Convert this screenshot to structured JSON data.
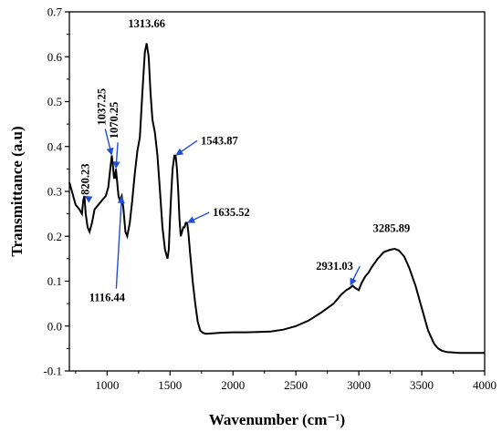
{
  "chart_data": {
    "type": "line",
    "title": "",
    "xlabel": "Wavenumber (cm⁻¹)",
    "ylabel": "Transmittance (a.u)",
    "xlim": [
      700,
      4000
    ],
    "ylim": [
      -0.1,
      0.7
    ],
    "grid": false,
    "x_ticks": [
      "1000",
      "1500",
      "2000",
      "2500",
      "3000",
      "3500",
      "4000"
    ],
    "y_ticks": [
      "-0.1",
      "0.0",
      "0.1",
      "0.2",
      "0.3",
      "0.4",
      "0.5",
      "0.6",
      "0.7"
    ],
    "series": [
      {
        "color": "#000000",
        "x": [
          700,
          720,
          750,
          780,
          800,
          810,
          820,
          830,
          845,
          860,
          880,
          900,
          930,
          960,
          990,
          1010,
          1025,
          1037,
          1045,
          1055,
          1062,
          1070,
          1080,
          1090,
          1100,
          1116,
          1130,
          1145,
          1160,
          1180,
          1200,
          1220,
          1240,
          1260,
          1280,
          1300,
          1314,
          1330,
          1345,
          1360,
          1380,
          1400,
          1420,
          1440,
          1460,
          1480,
          1490,
          1500,
          1510,
          1520,
          1535,
          1544,
          1555,
          1565,
          1575,
          1585,
          1595,
          1605,
          1615,
          1625,
          1636,
          1645,
          1660,
          1680,
          1700,
          1720,
          1740,
          1760,
          1780,
          1800,
          1850,
          1900,
          2000,
          2100,
          2200,
          2300,
          2400,
          2500,
          2600,
          2700,
          2800,
          2860,
          2900,
          2931,
          2950,
          2970,
          3000,
          3020,
          3050,
          3080,
          3100,
          3150,
          3200,
          3250,
          3286,
          3320,
          3360,
          3400,
          3450,
          3500,
          3550,
          3600,
          3630,
          3660,
          3700,
          3750,
          3800,
          3900,
          4000
        ],
        "y": [
          0.32,
          0.3,
          0.27,
          0.26,
          0.25,
          0.28,
          0.29,
          0.25,
          0.22,
          0.21,
          0.23,
          0.26,
          0.27,
          0.28,
          0.29,
          0.31,
          0.35,
          0.38,
          0.36,
          0.33,
          0.33,
          0.35,
          0.32,
          0.29,
          0.28,
          0.29,
          0.26,
          0.21,
          0.2,
          0.23,
          0.28,
          0.34,
          0.39,
          0.42,
          0.52,
          0.61,
          0.63,
          0.6,
          0.52,
          0.46,
          0.43,
          0.38,
          0.3,
          0.22,
          0.17,
          0.15,
          0.17,
          0.24,
          0.3,
          0.35,
          0.38,
          0.38,
          0.35,
          0.3,
          0.24,
          0.2,
          0.21,
          0.22,
          0.22,
          0.23,
          0.23,
          0.21,
          0.16,
          0.1,
          0.05,
          0.01,
          -0.01,
          -0.015,
          -0.017,
          -0.017,
          -0.016,
          -0.015,
          -0.014,
          -0.014,
          -0.013,
          -0.012,
          -0.008,
          0.0,
          0.012,
          0.03,
          0.05,
          0.07,
          0.08,
          0.085,
          0.09,
          0.085,
          0.08,
          0.095,
          0.11,
          0.12,
          0.13,
          0.15,
          0.165,
          0.17,
          0.172,
          0.168,
          0.155,
          0.13,
          0.09,
          0.04,
          -0.01,
          -0.04,
          -0.05,
          -0.055,
          -0.058,
          -0.059,
          -0.06,
          -0.06,
          -0.06
        ]
      }
    ],
    "annotations": [
      {
        "text": "1313.66",
        "x": 1314,
        "y": 0.63,
        "label_x": 1314,
        "label_y": 0.665,
        "arrow": false
      },
      {
        "text": "1037.25",
        "x": 1037,
        "y": 0.38,
        "label_x": 985,
        "label_y": 0.5,
        "arrow": true,
        "rotate": true
      },
      {
        "text": "1070.25",
        "x": 1070,
        "y": 0.35,
        "label_x": 1085,
        "label_y": 0.47,
        "arrow": true,
        "rotate": true
      },
      {
        "text": "820.23",
        "x": 820,
        "y": 0.29,
        "label_x": 855,
        "label_y": 0.345,
        "arrow": true,
        "rotate": true
      },
      {
        "text": "1116.44",
        "x": 1116,
        "y": 0.29,
        "label_x": 1000,
        "label_y": 0.055,
        "arrow": true,
        "rotate": false
      },
      {
        "text": "1543.87",
        "x": 1544,
        "y": 0.38,
        "label_x": 1745,
        "label_y": 0.405,
        "arrow": true,
        "rotate": false
      },
      {
        "text": "1635.52",
        "x": 1636,
        "y": 0.23,
        "label_x": 1840,
        "label_y": 0.245,
        "arrow": true,
        "rotate": false
      },
      {
        "text": "2931.03",
        "x": 2931,
        "y": 0.09,
        "label_x": 2660,
        "label_y": 0.125,
        "arrow": true,
        "rotate": false
      },
      {
        "text": "3285.89",
        "x": 3286,
        "y": 0.172,
        "label_x": 3260,
        "label_y": 0.21,
        "arrow": false,
        "rotate": false
      }
    ]
  }
}
